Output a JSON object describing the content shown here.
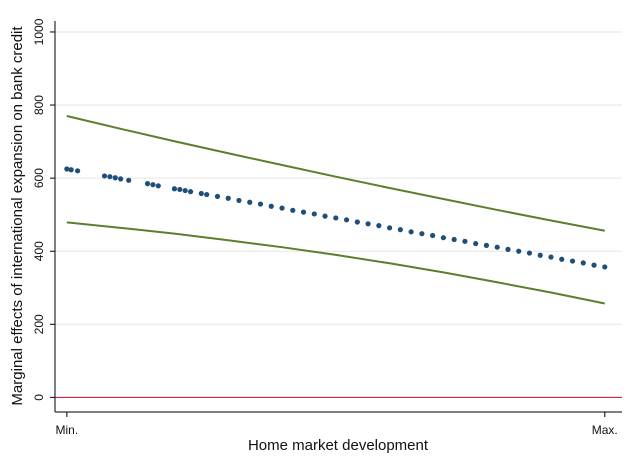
{
  "chart_data": {
    "type": "line",
    "xlabel": "Home market development",
    "ylabel": "Marginal effects of international expansion on bank credit",
    "xlim": [
      -0.022,
      1.032
    ],
    "xticks": [
      {
        "value": 0,
        "label": "Min."
      },
      {
        "value": 1,
        "label": "Max."
      }
    ],
    "ylim": [
      -40,
      1030
    ],
    "yticks": [
      0,
      200,
      400,
      600,
      800,
      1000
    ],
    "grid": true,
    "hline": {
      "value": 0,
      "color": "#c8102e"
    },
    "series": [
      {
        "type": "line",
        "color": "#5b7f2b",
        "x": [
          0,
          0.1,
          0.2,
          0.3,
          0.4,
          0.5,
          0.6,
          0.7,
          0.8,
          0.9,
          1
        ],
        "values": [
          770,
          735,
          701,
          668,
          636,
          604,
          573,
          543,
          513,
          484,
          456
        ]
      },
      {
        "type": "line",
        "color": "#5b7f2b",
        "x": [
          0,
          0.1,
          0.2,
          0.3,
          0.4,
          0.5,
          0.6,
          0.7,
          0.8,
          0.9,
          1
        ],
        "values": [
          479,
          464,
          448,
          430,
          411,
          390,
          367,
          342,
          315,
          287,
          257
        ]
      },
      {
        "type": "scatter",
        "color": "#1f4e79",
        "x": [
          0,
          0.008,
          0.02,
          0.07,
          0.08,
          0.09,
          0.1,
          0.115,
          0.15,
          0.16,
          0.17,
          0.2,
          0.21,
          0.22,
          0.23,
          0.25,
          0.26,
          0.28,
          0.3,
          0.32,
          0.34,
          0.36,
          0.38,
          0.4,
          0.42,
          0.44,
          0.46,
          0.48,
          0.5,
          0.52,
          0.54,
          0.56,
          0.58,
          0.6,
          0.62,
          0.64,
          0.66,
          0.68,
          0.7,
          0.72,
          0.74,
          0.76,
          0.78,
          0.8,
          0.82,
          0.84,
          0.86,
          0.88,
          0.9,
          0.92,
          0.94,
          0.96,
          0.98,
          1
        ],
        "values": [
          625,
          623,
          620,
          606,
          604,
          601,
          598,
          594,
          585,
          582,
          579,
          571,
          569,
          566,
          563,
          558,
          555,
          550,
          545,
          539,
          534,
          529,
          523,
          518,
          512,
          507,
          502,
          496,
          491,
          486,
          480,
          475,
          470,
          464,
          459,
          453,
          448,
          443,
          437,
          432,
          427,
          421,
          416,
          411,
          405,
          400,
          395,
          389,
          384,
          378,
          373,
          368,
          362,
          357
        ]
      }
    ]
  }
}
